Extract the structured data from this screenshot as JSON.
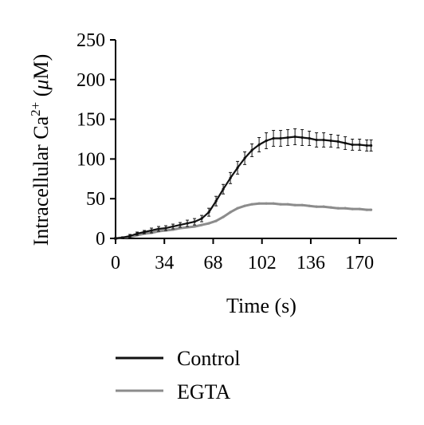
{
  "chart_data": {
    "type": "line",
    "xlabel": "Time (s)",
    "ylabel": {
      "prefix": "Intracellular Ca",
      "superscript": "2+",
      "unit_open": " (",
      "unit_greek": "μ",
      "unit_rest": "M)"
    },
    "xlim": [
      0,
      196
    ],
    "ylim": [
      0,
      250
    ],
    "x_ticks": [
      0,
      34,
      68,
      102,
      136,
      170
    ],
    "y_ticks": [
      0,
      50,
      100,
      150,
      200,
      250
    ],
    "grid": false,
    "legend_position": "bottom-left",
    "series": [
      {
        "name": "Control",
        "color": "#111111",
        "error_bars": true,
        "x": [
          0,
          5,
          10,
          15,
          20,
          25,
          30,
          35,
          40,
          45,
          50,
          55,
          60,
          65,
          70,
          75,
          80,
          85,
          90,
          95,
          100,
          105,
          110,
          115,
          120,
          125,
          130,
          135,
          140,
          145,
          150,
          155,
          160,
          165,
          170,
          175,
          178
        ],
        "y": [
          0,
          1,
          3,
          6,
          8,
          10,
          12,
          13,
          15,
          17,
          19,
          21,
          25,
          33,
          47,
          62,
          76,
          89,
          101,
          111,
          118,
          123,
          126,
          126,
          127,
          128,
          127,
          126,
          124,
          124,
          123,
          122,
          120,
          118,
          118,
          117,
          117
        ],
        "err": [
          1,
          1,
          2,
          2,
          2,
          3,
          3,
          3,
          3,
          3,
          4,
          4,
          4,
          5,
          6,
          6,
          7,
          8,
          8,
          8,
          9,
          10,
          10,
          10,
          10,
          10,
          10,
          9,
          9,
          9,
          8,
          8,
          8,
          7,
          7,
          7,
          7
        ]
      },
      {
        "name": "EGTA",
        "color": "#8c8c8c",
        "error_bars": false,
        "x": [
          0,
          5,
          10,
          15,
          20,
          25,
          30,
          35,
          40,
          45,
          50,
          55,
          60,
          65,
          70,
          75,
          80,
          85,
          90,
          95,
          100,
          105,
          110,
          115,
          120,
          125,
          130,
          135,
          140,
          145,
          150,
          155,
          160,
          165,
          170,
          175,
          178
        ],
        "y": [
          0,
          1,
          2,
          4,
          6,
          7,
          9,
          10,
          11,
          13,
          14,
          15,
          17,
          19,
          22,
          27,
          33,
          38,
          41,
          43,
          44,
          44,
          44,
          43,
          43,
          42,
          42,
          41,
          40,
          40,
          39,
          38,
          38,
          37,
          37,
          36,
          36
        ]
      }
    ]
  }
}
